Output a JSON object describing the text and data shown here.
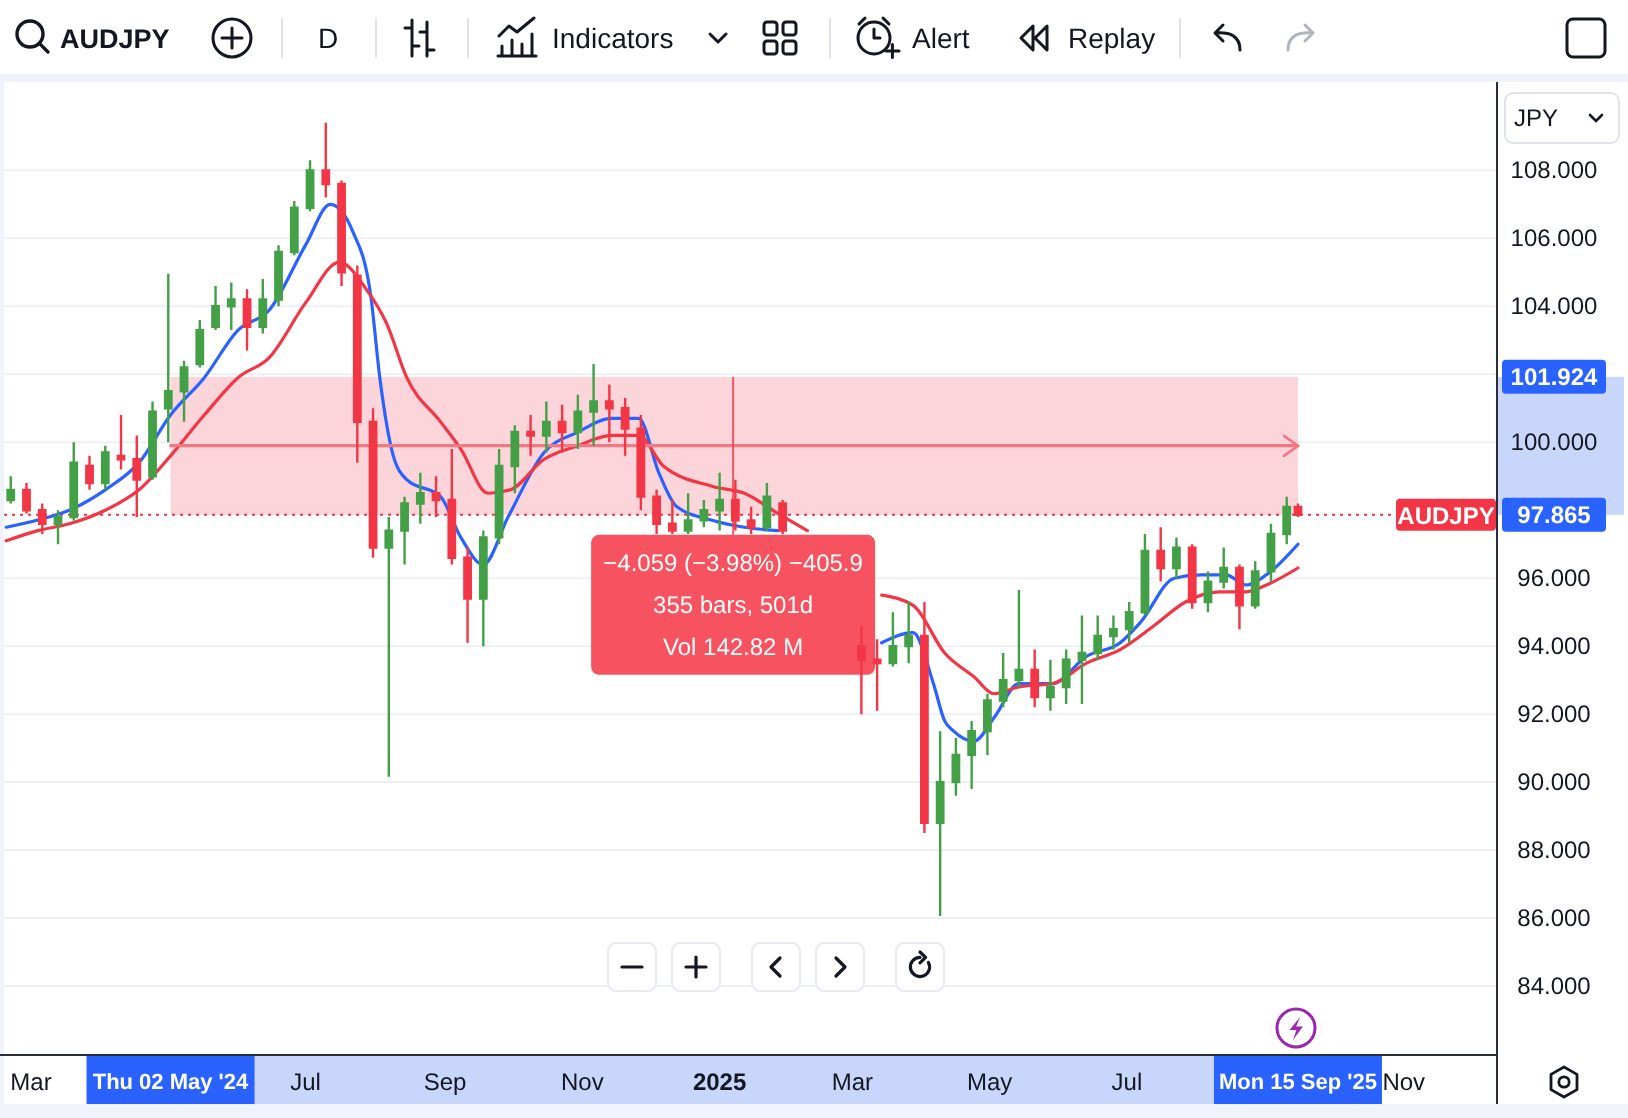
{
  "chart_data": {
    "type": "candlestick",
    "title": "AUDJPY",
    "x": [
      "2024-02-21",
      "2024-02-28",
      "2024-03-06",
      "2024-03-13",
      "2024-03-20",
      "2024-03-27",
      "2024-04-03",
      "2024-04-10",
      "2024-04-17",
      "2024-04-24",
      "2024-05-01",
      "2024-05-08",
      "2024-05-15",
      "2024-05-22",
      "2024-05-29",
      "2024-06-05",
      "2024-06-12",
      "2024-06-19",
      "2024-06-26",
      "2024-07-03",
      "2024-07-10",
      "2024-07-17",
      "2024-07-24",
      "2024-07-31",
      "2024-08-07",
      "2024-08-14",
      "2024-08-21",
      "2024-08-28",
      "2024-09-04",
      "2024-09-11",
      "2024-09-18",
      "2024-09-25",
      "2024-10-02",
      "2024-10-09",
      "2024-10-16",
      "2024-10-23",
      "2024-10-30",
      "2024-11-06",
      "2024-11-13",
      "2024-11-20",
      "2024-11-27",
      "2024-12-04",
      "2024-12-11",
      "2024-12-18",
      "2024-12-25",
      "2025-01-01",
      "2025-01-08",
      "2025-01-15",
      "2025-01-22",
      "2025-01-29",
      "2025-03-05",
      "2025-03-12",
      "2025-03-19",
      "2025-03-26",
      "2025-04-02",
      "2025-04-09",
      "2025-04-16",
      "2025-04-23",
      "2025-04-30",
      "2025-05-07",
      "2025-05-14",
      "2025-05-21",
      "2025-05-28",
      "2025-06-04",
      "2025-06-11",
      "2025-06-18",
      "2025-06-25",
      "2025-07-02",
      "2025-07-09",
      "2025-07-16",
      "2025-07-23",
      "2025-07-30",
      "2025-08-06",
      "2025-08-13",
      "2025-08-20",
      "2025-08-27",
      "2025-09-03",
      "2025-09-10",
      "2025-09-15"
    ],
    "ohlc": [
      [
        98.3,
        99.0,
        98.2,
        98.6
      ],
      [
        98.6,
        98.8,
        97.9,
        98.0
      ],
      [
        98.0,
        98.2,
        97.3,
        97.6
      ],
      [
        97.6,
        98.0,
        97.0,
        97.8
      ],
      [
        97.8,
        100.0,
        97.7,
        99.4
      ],
      [
        99.3,
        99.6,
        98.6,
        98.8
      ],
      [
        98.8,
        99.9,
        98.6,
        99.7
      ],
      [
        99.6,
        100.8,
        99.2,
        99.5
      ],
      [
        99.5,
        100.2,
        97.8,
        98.9
      ],
      [
        99.0,
        101.2,
        98.9,
        100.9
      ],
      [
        101.0,
        104.96,
        100.0,
        101.5
      ],
      [
        101.5,
        102.4,
        100.6,
        102.2
      ],
      [
        102.3,
        103.6,
        102.2,
        103.3
      ],
      [
        103.4,
        104.6,
        103.3,
        104.0
      ],
      [
        104.0,
        104.7,
        103.3,
        104.2
      ],
      [
        104.2,
        104.5,
        102.7,
        103.4
      ],
      [
        103.4,
        104.8,
        103.2,
        104.2
      ],
      [
        104.2,
        105.8,
        104.0,
        105.6
      ],
      [
        105.6,
        107.1,
        105.5,
        106.9
      ],
      [
        106.9,
        108.3,
        106.8,
        108.0
      ],
      [
        108.0,
        109.4,
        107.2,
        107.6
      ],
      [
        107.6,
        107.7,
        104.6,
        105.0
      ],
      [
        104.9,
        105.2,
        99.4,
        100.6
      ],
      [
        100.6,
        101.0,
        96.6,
        96.9
      ],
      [
        96.9,
        97.8,
        90.16,
        97.4
      ],
      [
        97.4,
        98.4,
        96.4,
        98.2
      ],
      [
        98.2,
        99.1,
        97.6,
        98.5
      ],
      [
        98.5,
        99.0,
        97.8,
        98.3
      ],
      [
        98.3,
        99.8,
        96.4,
        96.6
      ],
      [
        96.6,
        96.9,
        94.1,
        95.4
      ],
      [
        95.4,
        97.4,
        94.0,
        97.2
      ],
      [
        97.2,
        99.8,
        97.0,
        99.3
      ],
      [
        99.3,
        100.5,
        98.5,
        100.3
      ],
      [
        100.3,
        100.8,
        99.6,
        100.2
      ],
      [
        100.2,
        101.2,
        99.7,
        100.6
      ],
      [
        100.6,
        101.1,
        99.7,
        100.3
      ],
      [
        100.3,
        101.4,
        99.8,
        100.9
      ],
      [
        100.9,
        102.3,
        99.9,
        101.2
      ],
      [
        101.2,
        101.7,
        100.0,
        101.0
      ],
      [
        101.0,
        101.3,
        99.6,
        100.4
      ],
      [
        100.4,
        100.8,
        98.0,
        98.4
      ],
      [
        98.4,
        98.6,
        97.3,
        97.6
      ],
      [
        97.6,
        98.3,
        97.3,
        97.4
      ],
      [
        97.4,
        98.5,
        97.3,
        97.7
      ],
      [
        97.7,
        98.3,
        97.5,
        98.0
      ],
      [
        98.0,
        99.1,
        97.4,
        98.3
      ],
      [
        98.3,
        98.9,
        97.4,
        97.7
      ],
      [
        97.7,
        98.1,
        97.3,
        97.5
      ],
      [
        97.5,
        98.8,
        97.4,
        98.4
      ],
      [
        98.2,
        98.3,
        97.3,
        97.4
      ],
      [
        94.0,
        94.6,
        92.0,
        93.6
      ],
      [
        93.6,
        94.2,
        92.1,
        93.5
      ],
      [
        93.5,
        95.0,
        93.4,
        94.0
      ],
      [
        94.0,
        95.3,
        93.5,
        94.3
      ],
      [
        94.3,
        95.3,
        88.5,
        88.8
      ],
      [
        88.8,
        91.5,
        86.06,
        90.0
      ],
      [
        90.0,
        91.3,
        89.6,
        90.8
      ],
      [
        90.8,
        91.8,
        89.8,
        91.5
      ],
      [
        91.5,
        92.6,
        90.8,
        92.4
      ],
      [
        92.4,
        93.8,
        92.2,
        93.0
      ],
      [
        93.0,
        95.65,
        92.8,
        93.3
      ],
      [
        93.3,
        93.9,
        92.2,
        92.5
      ],
      [
        92.5,
        93.6,
        92.1,
        92.8
      ],
      [
        92.8,
        93.9,
        92.3,
        93.6
      ],
      [
        93.6,
        94.9,
        92.3,
        93.8
      ],
      [
        93.8,
        94.9,
        93.6,
        94.3
      ],
      [
        94.3,
        94.9,
        93.9,
        94.5
      ],
      [
        94.5,
        95.3,
        94.1,
        95.0
      ],
      [
        95.0,
        97.3,
        94.9,
        96.8
      ],
      [
        96.8,
        97.5,
        95.9,
        96.3
      ],
      [
        96.3,
        97.2,
        96.0,
        96.9
      ],
      [
        96.9,
        97.0,
        95.1,
        95.3
      ],
      [
        95.3,
        96.2,
        95.0,
        95.9
      ],
      [
        95.9,
        96.9,
        95.7,
        96.3
      ],
      [
        96.3,
        96.4,
        94.5,
        95.2
      ],
      [
        95.2,
        96.5,
        95.1,
        96.2
      ],
      [
        96.2,
        97.6,
        95.9,
        97.3
      ],
      [
        97.3,
        98.4,
        97.0,
        98.1
      ],
      [
        98.1,
        98.2,
        97.8,
        97.865
      ]
    ],
    "colors": [
      "#43a047",
      "#f23645",
      "#f23645",
      "#43a047",
      "#43a047",
      "#f23645",
      "#43a047",
      "#f23645",
      "#f23645",
      "#43a047",
      "#43a047",
      "#43a047",
      "#43a047",
      "#43a047",
      "#43a047",
      "#f23645",
      "#43a047",
      "#43a047",
      "#43a047",
      "#43a047",
      "#f23645",
      "#f23645",
      "#f23645",
      "#f23645",
      "#43a047",
      "#43a047",
      "#43a047",
      "#f23645",
      "#f23645",
      "#f23645",
      "#43a047",
      "#43a047",
      "#43a047",
      "#f23645",
      "#43a047",
      "#f23645",
      "#43a047",
      "#43a047",
      "#f23645",
      "#f23645",
      "#f23645",
      "#f23645",
      "#f23645",
      "#43a047",
      "#43a047",
      "#43a047",
      "#f23645",
      "#f23645",
      "#43a047",
      "#f23645",
      "#f23645",
      "#f23645",
      "#43a047",
      "#43a047",
      "#f23645",
      "#43a047",
      "#43a047",
      "#43a047",
      "#43a047",
      "#43a047",
      "#43a047",
      "#f23645",
      "#43a047",
      "#43a047",
      "#43a047",
      "#43a047",
      "#43a047",
      "#43a047",
      "#43a047",
      "#f23645",
      "#43a047",
      "#f23645",
      "#43a047",
      "#43a047",
      "#f23645",
      "#43a047",
      "#43a047",
      "#43a047",
      "#f23645"
    ],
    "series": [
      {
        "type": "line",
        "color": "#2962ff",
        "x": [
          "2024-02-19",
          "2024-03-09",
          "2024-03-18",
          "2024-04-03",
          "2024-04-18",
          "2024-05-02",
          "2024-05-17",
          "2024-06-01",
          "2024-06-15",
          "2024-07-01",
          "2024-07-12",
          "2024-07-22",
          "2024-07-30",
          "2024-08-03",
          "2024-08-09",
          "2024-08-15",
          "2024-08-30",
          "2024-09-08",
          "2024-09-18",
          "2024-09-29",
          "2024-10-15",
          "2024-10-30",
          "2024-11-14",
          "2024-11-26",
          "2024-12-05",
          "2024-12-13",
          "2024-12-29",
          "2025-01-12",
          "2025-01-27",
          "2025-02-18",
          "2025-03-14",
          "2025-03-28",
          "2025-04-06",
          "2025-04-11",
          "2025-04-15",
          "2025-04-24",
          "2025-05-03",
          "2025-05-14",
          "2025-05-29",
          "2025-06-13",
          "2025-06-28",
          "2025-07-07",
          "2025-07-22",
          "2025-08-03",
          "2025-08-14",
          "2025-08-23",
          "2025-09-01",
          "2025-09-15"
        ],
        "values": [
          97.5,
          97.8,
          98.0,
          98.6,
          99.4,
          100.8,
          101.9,
          103.3,
          103.9,
          105.8,
          107.0,
          106.2,
          104.3,
          101.9,
          99.6,
          98.9,
          98.4,
          97.2,
          96.4,
          97.8,
          99.7,
          100.3,
          100.7,
          100.7,
          99.1,
          98.1,
          97.7,
          97.5,
          97.4,
          null,
          94.1,
          94.4,
          92.9,
          91.8,
          91.5,
          91.2,
          91.9,
          92.9,
          92.9,
          93.7,
          94.1,
          94.7,
          96.0,
          96.1,
          96.1,
          95.8,
          96.1,
          97.0
        ]
      },
      {
        "type": "line",
        "color": "#f23645",
        "x": [
          "2024-02-19",
          "2024-03-04",
          "2024-03-18",
          "2024-04-03",
          "2024-04-18",
          "2024-05-02",
          "2024-05-17",
          "2024-06-01",
          "2024-06-15",
          "2024-07-01",
          "2024-07-16",
          "2024-07-28",
          "2024-08-06",
          "2024-08-15",
          "2024-08-30",
          "2024-09-08",
          "2024-09-20",
          "2024-09-30",
          "2024-10-15",
          "2024-10-30",
          "2024-11-14",
          "2024-11-26",
          "2024-12-07",
          "2024-12-29",
          "2025-01-12",
          "2025-01-27",
          "2025-02-09",
          "2025-02-24",
          "2025-03-14",
          "2025-03-28",
          "2025-04-11",
          "2025-04-24",
          "2025-05-03",
          "2025-05-14",
          "2025-05-29",
          "2025-06-13",
          "2025-06-28",
          "2025-07-13",
          "2025-07-27",
          "2025-08-11",
          "2025-08-23",
          "2025-09-01",
          "2025-09-15"
        ],
        "values": [
          97.1,
          97.4,
          97.6,
          98.0,
          98.6,
          99.6,
          100.8,
          101.9,
          102.5,
          104.1,
          105.3,
          104.5,
          103.5,
          101.9,
          100.6,
          99.8,
          98.5,
          98.6,
          99.5,
          99.9,
          100.2,
          100.2,
          99.3,
          98.7,
          98.5,
          97.9,
          97.4,
          null,
          95.5,
          95.2,
          93.8,
          93.1,
          92.6,
          92.8,
          92.9,
          93.5,
          93.9,
          94.6,
          95.3,
          95.6,
          95.6,
          95.8,
          96.3
        ]
      },
      {
        "type": "line",
        "color": "#f07a83",
        "x": [
          "2024-05-02",
          "2025-09-15"
        ],
        "values": [
          99.9,
          99.9
        ]
      }
    ],
    "xlim": [
      "2024-02-18",
      "2025-12-12"
    ],
    "xticks": [
      {
        "value": "2024-03-01",
        "label": "Mar"
      },
      {
        "value": "2024-05-02",
        "label": "Thu 02 May '24"
      },
      {
        "value": "2024-07-01",
        "label": "Jul"
      },
      {
        "value": "2024-09-01",
        "label": "Sep"
      },
      {
        "value": "2024-11-01",
        "label": "Nov"
      },
      {
        "value": "2025-01-01",
        "label": "2025"
      },
      {
        "value": "2025-03-01",
        "label": "Mar"
      },
      {
        "value": "2025-05-01",
        "label": "May"
      },
      {
        "value": "2025-07-01",
        "label": "Jul"
      },
      {
        "value": "2025-09-15",
        "label": "Mon 15 Sep '25"
      },
      {
        "value": "2025-11-01",
        "label": "Nov"
      }
    ],
    "ylim": [
      82,
      110.6
    ],
    "yticks": [
      {
        "value": 84,
        "label": "84.000"
      },
      {
        "value": 86,
        "label": "86.000"
      },
      {
        "value": 88,
        "label": "88.000"
      },
      {
        "value": 90,
        "label": "90.000"
      },
      {
        "value": 92,
        "label": "92.000"
      },
      {
        "value": 94,
        "label": "94.000"
      },
      {
        "value": 96,
        "label": "96.000"
      },
      {
        "value": 97.865,
        "label": "97.865"
      },
      {
        "value": 100,
        "label": "100.000"
      },
      {
        "value": 101.924,
        "label": "101.924"
      },
      {
        "value": 102,
        "label": null
      },
      {
        "value": 104,
        "label": "104.000"
      },
      {
        "value": 106,
        "label": "106.000"
      },
      {
        "value": 108,
        "label": "108.000"
      }
    ],
    "grid": "y",
    "bands": [
      {
        "axis": "y",
        "from": 97.865,
        "to": 101.924,
        "color": "#fbd5d9"
      }
    ],
    "ref_lines": [
      {
        "axis": "y",
        "value": 97.865,
        "label": "AUDJPY",
        "color": "#f23645",
        "line_style": "dotted"
      }
    ],
    "annotations": [
      {
        "text": "−4.059 (−3.98%) −405.9",
        "x": "2025-01-07",
        "y": 101.924
      },
      "355 bars, 501d",
      "Vol 142.82 M",
      "D",
      "Indicators",
      "Alert",
      "Replay",
      "JPY"
    ]
  }
}
